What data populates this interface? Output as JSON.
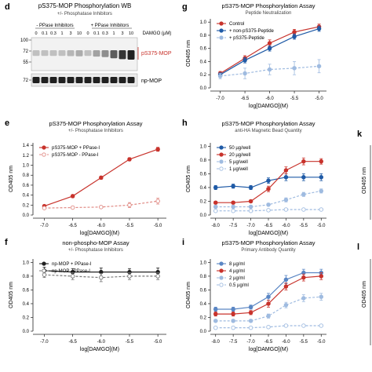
{
  "colors": {
    "red": "#c8332c",
    "light_red": "#e08a84",
    "blue": "#1f5aa6",
    "mid_blue": "#5a86c4",
    "light_blue": "#9fbbe0",
    "dark": "#222222",
    "gray": "#777777"
  },
  "western_blot": {
    "panel_letter": "d",
    "title": "pS375-MOP Phosphorylation WB",
    "subtitle": "+/- Phosphatase Inhibitors",
    "group_minus": "- PPase Inhibitors",
    "group_plus": "+ PPase Inhibitors",
    "damgo_label": "DAMGO (µM)",
    "conc_header": "0",
    "concentrations": [
      "0",
      "0.1",
      "0.3",
      "1",
      "3",
      "10",
      "0",
      "0.1",
      "0.3",
      "1",
      "3",
      "10"
    ],
    "mw_markers_top": [
      "100",
      "72",
      "55"
    ],
    "mw_markers_bottom": [
      "72"
    ],
    "band_top_label": "pS375-MOP",
    "band_bottom_label": "np-MOP",
    "band_top_intensity": [
      0.2,
      0.2,
      0.2,
      0.2,
      0.25,
      0.3,
      0.2,
      0.35,
      0.45,
      0.7,
      0.9,
      1.0
    ],
    "band_bottom_intensity": [
      0.9,
      0.9,
      0.9,
      0.9,
      0.9,
      0.9,
      0.9,
      0.9,
      0.9,
      0.9,
      0.9,
      0.9
    ]
  },
  "cut_panels": {
    "k_letter": "k",
    "l_letter": "l",
    "k_ylabel": "OD405 nm",
    "l_ylabel": "OD405 nm"
  },
  "chart_data": [
    {
      "id": "g",
      "type": "line",
      "panel_letter": "g",
      "title": "pS375-MOP Phosphorylation Assay",
      "subtitle": "Peptide Neutralization",
      "xlabel": "log[DAMGO](M)",
      "ylabel": "OD405 nm",
      "xlim": [
        -7.2,
        -4.85
      ],
      "ylim": [
        0,
        1.05
      ],
      "xticks": [
        "-7.0",
        "-6.5",
        "-6.0",
        "-5.5",
        "-5.0"
      ],
      "xtick_values": [
        -7.0,
        -6.5,
        -6.0,
        -5.5,
        -5.0
      ],
      "yticks": [
        "0.0",
        "0.2",
        "0.4",
        "0.6",
        "0.8",
        "1.0"
      ],
      "ytick_values": [
        0,
        0.2,
        0.4,
        0.6,
        0.8,
        1.0
      ],
      "legend": "top-left",
      "series": [
        {
          "name": "Control",
          "x": [
            -7.0,
            -6.5,
            -6.0,
            -5.5,
            -5.0
          ],
          "y": [
            0.22,
            0.45,
            0.68,
            0.85,
            0.93
          ],
          "err": [
            0.03,
            0.04,
            0.05,
            0.04,
            0.04
          ],
          "color": "#c8332c",
          "dash": false,
          "fill": "filled",
          "marker": "circle"
        },
        {
          "name": "+ non-pS375-Peptide",
          "x": [
            -7.0,
            -6.5,
            -6.0,
            -5.5,
            -5.0
          ],
          "y": [
            0.2,
            0.42,
            0.6,
            0.78,
            0.9
          ],
          "err": [
            0.03,
            0.04,
            0.04,
            0.04,
            0.04
          ],
          "color": "#1f5aa6",
          "dash": false,
          "fill": "filled",
          "marker": "circle"
        },
        {
          "name": "+ pS375-Peptide",
          "x": [
            -7.0,
            -6.5,
            -6.0,
            -5.5,
            -5.0
          ],
          "y": [
            0.18,
            0.22,
            0.28,
            0.3,
            0.33
          ],
          "err": [
            0.04,
            0.08,
            0.08,
            0.1,
            0.1
          ],
          "color": "#9fbbe0",
          "dash": true,
          "fill": "filled",
          "marker": "circle"
        }
      ]
    },
    {
      "id": "e",
      "type": "line",
      "panel_letter": "e",
      "title": "pS375-MOP Phosphorylation Assay",
      "subtitle": "+/- Phosphatase Inhibitors",
      "xlabel": "log[DAMGO](M)",
      "ylabel": "OD405 nm",
      "xlim": [
        -7.2,
        -4.85
      ],
      "ylim": [
        0,
        1.45
      ],
      "xticks": [
        "-7.0",
        "-6.5",
        "-6.0",
        "-5.5",
        "-5.0"
      ],
      "xtick_values": [
        -7.0,
        -6.5,
        -6.0,
        -5.5,
        -5.0
      ],
      "yticks": [
        "0.0",
        "0.2",
        "0.4",
        "0.6",
        "0.8",
        "1.0",
        "1.2",
        "1.4"
      ],
      "ytick_values": [
        0,
        0.2,
        0.4,
        0.6,
        0.8,
        1.0,
        1.2,
        1.4
      ],
      "legend": "top-left",
      "series": [
        {
          "name": "pS375-MOP + PPase-I",
          "x": [
            -7.0,
            -6.5,
            -6.0,
            -5.5,
            -5.0
          ],
          "y": [
            0.18,
            0.38,
            0.75,
            1.12,
            1.32
          ],
          "err": [
            0.02,
            0.03,
            0.03,
            0.03,
            0.04
          ],
          "color": "#c8332c",
          "dash": false,
          "fill": "filled",
          "marker": "circle"
        },
        {
          "name": "pS375-MOP - PPase-I",
          "x": [
            -7.0,
            -6.5,
            -6.0,
            -5.5,
            -5.0
          ],
          "y": [
            0.14,
            0.15,
            0.16,
            0.2,
            0.28
          ],
          "err": [
            0.02,
            0.02,
            0.02,
            0.05,
            0.06
          ],
          "color": "#e08a84",
          "dash": true,
          "fill": "open",
          "marker": "circle"
        }
      ]
    },
    {
      "id": "h",
      "type": "line",
      "panel_letter": "h",
      "title": "pS375-MOP Phosphorylation Assay",
      "subtitle": "anti-HA Magnetic Bead Quantity",
      "xlabel": "log[DAMGO](M)",
      "ylabel": "OD405 nm",
      "xlim": [
        -8.15,
        -4.85
      ],
      "ylim": [
        0,
        1.05
      ],
      "xticks": [
        "-8.0",
        "-7.5",
        "-7.0",
        "-6.5",
        "-6.0",
        "-5.5",
        "-5.0"
      ],
      "xtick_values": [
        -8.0,
        -7.5,
        -7.0,
        -6.5,
        -6.0,
        -5.5,
        -5.0
      ],
      "yticks": [
        "0.0",
        "0.2",
        "0.4",
        "0.6",
        "0.8",
        "1.0"
      ],
      "ytick_values": [
        0,
        0.2,
        0.4,
        0.6,
        0.8,
        1.0
      ],
      "legend": "top-left",
      "series": [
        {
          "name": "50 µg/well",
          "x": [
            -8.0,
            -7.5,
            -7.0,
            -6.5,
            -6.0,
            -5.5,
            -5.0
          ],
          "y": [
            0.4,
            0.42,
            0.4,
            0.5,
            0.55,
            0.55,
            0.55
          ],
          "err": [
            0.03,
            0.03,
            0.03,
            0.04,
            0.05,
            0.05,
            0.05
          ],
          "color": "#1f5aa6",
          "dash": false,
          "fill": "filled",
          "marker": "circle"
        },
        {
          "name": "20 µg/well",
          "x": [
            -8.0,
            -7.5,
            -7.0,
            -6.5,
            -6.0,
            -5.5,
            -5.0
          ],
          "y": [
            0.18,
            0.18,
            0.2,
            0.38,
            0.65,
            0.78,
            0.78
          ],
          "err": [
            0.02,
            0.02,
            0.02,
            0.04,
            0.05,
            0.05,
            0.04
          ],
          "color": "#c8332c",
          "dash": false,
          "fill": "filled",
          "marker": "circle"
        },
        {
          "name": "5 µg/well",
          "x": [
            -8.0,
            -7.5,
            -7.0,
            -6.5,
            -6.0,
            -5.5,
            -5.0
          ],
          "y": [
            0.12,
            0.12,
            0.12,
            0.15,
            0.22,
            0.3,
            0.35
          ],
          "err": [
            0.02,
            0.02,
            0.02,
            0.02,
            0.03,
            0.03,
            0.03
          ],
          "color": "#9fbbe0",
          "dash": true,
          "fill": "filled",
          "marker": "circle"
        },
        {
          "name": "1 µg/well",
          "x": [
            -8.0,
            -7.5,
            -7.0,
            -6.5,
            -6.0,
            -5.5,
            -5.0
          ],
          "y": [
            0.06,
            0.06,
            0.06,
            0.07,
            0.08,
            0.08,
            0.08
          ],
          "err": [
            0.01,
            0.01,
            0.01,
            0.01,
            0.01,
            0.01,
            0.01
          ],
          "color": "#9fbbe0",
          "dash": true,
          "fill": "open",
          "marker": "circle"
        }
      ]
    },
    {
      "id": "f",
      "type": "line",
      "panel_letter": "f",
      "title": "non-phospho-MOP Assay",
      "subtitle": "+/- Phosphatase Inhibitors",
      "xlabel": "log[DAMGO](M)",
      "ylabel": "OD405 nm",
      "xlim": [
        -7.2,
        -4.85
      ],
      "ylim": [
        0,
        1.05
      ],
      "xticks": [
        "-7.0",
        "-6.5",
        "-6.0",
        "-5.5",
        "-5.0"
      ],
      "xtick_values": [
        -7.0,
        -6.5,
        -6.0,
        -5.5,
        -5.0
      ],
      "yticks": [
        "0.0",
        "0.2",
        "0.4",
        "0.6",
        "0.8",
        "1.0"
      ],
      "ytick_values": [
        0,
        0.2,
        0.4,
        0.6,
        0.8,
        1.0
      ],
      "legend": "top-left",
      "series": [
        {
          "name": "np-MOP + PPase-I",
          "x": [
            -7.0,
            -6.5,
            -6.0,
            -5.5,
            -5.0
          ],
          "y": [
            0.88,
            0.86,
            0.86,
            0.86,
            0.86
          ],
          "err": [
            0.05,
            0.05,
            0.06,
            0.05,
            0.06
          ],
          "color": "#222222",
          "dash": false,
          "fill": "filled",
          "marker": "circle"
        },
        {
          "name": "np-MOP - PPase-I",
          "x": [
            -7.0,
            -6.5,
            -6.0,
            -5.5,
            -5.0
          ],
          "y": [
            0.82,
            0.8,
            0.78,
            0.8,
            0.8
          ],
          "err": [
            0.04,
            0.05,
            0.06,
            0.05,
            0.05
          ],
          "color": "#777777",
          "dash": true,
          "fill": "open",
          "marker": "circle"
        }
      ]
    },
    {
      "id": "i",
      "type": "line",
      "panel_letter": "i",
      "title": "pS375-MOP Phosphorylation Assay",
      "subtitle": "Primary Antibody Quantity",
      "xlabel": "log[DAMGO](M)",
      "ylabel": "OD405 nm",
      "xlim": [
        -8.15,
        -4.85
      ],
      "ylim": [
        0,
        1.05
      ],
      "xticks": [
        "-8.0",
        "-7.5",
        "-7.0",
        "-6.5",
        "-6.0",
        "-5.5",
        "-5.0"
      ],
      "xtick_values": [
        -8.0,
        -7.5,
        -7.0,
        -6.5,
        -6.0,
        -5.5,
        -5.0
      ],
      "yticks": [
        "0.0",
        "0.2",
        "0.4",
        "0.6",
        "0.8",
        "1.0"
      ],
      "ytick_values": [
        0,
        0.2,
        0.4,
        0.6,
        0.8,
        1.0
      ],
      "legend": "top-left",
      "series": [
        {
          "name": "8 µg/ml",
          "x": [
            -8.0,
            -7.5,
            -7.0,
            -6.5,
            -6.0,
            -5.5,
            -5.0
          ],
          "y": [
            0.32,
            0.32,
            0.35,
            0.5,
            0.75,
            0.85,
            0.85
          ],
          "err": [
            0.03,
            0.03,
            0.03,
            0.05,
            0.06,
            0.05,
            0.05
          ],
          "color": "#5a86c4",
          "dash": false,
          "fill": "filled",
          "marker": "circle"
        },
        {
          "name": "4 µg/ml",
          "x": [
            -8.0,
            -7.5,
            -7.0,
            -6.5,
            -6.0,
            -5.5,
            -5.0
          ],
          "y": [
            0.25,
            0.25,
            0.27,
            0.4,
            0.65,
            0.78,
            0.8
          ],
          "err": [
            0.03,
            0.03,
            0.03,
            0.05,
            0.05,
            0.05,
            0.05
          ],
          "color": "#c8332c",
          "dash": false,
          "fill": "filled",
          "marker": "circle"
        },
        {
          "name": "2 µg/ml",
          "x": [
            -8.0,
            -7.5,
            -7.0,
            -6.5,
            -6.0,
            -5.5,
            -5.0
          ],
          "y": [
            0.15,
            0.15,
            0.15,
            0.22,
            0.38,
            0.48,
            0.5
          ],
          "err": [
            0.02,
            0.02,
            0.02,
            0.03,
            0.04,
            0.05,
            0.05
          ],
          "color": "#9fbbe0",
          "dash": true,
          "fill": "filled",
          "marker": "circle"
        },
        {
          "name": "0.5 µg/ml",
          "x": [
            -8.0,
            -7.5,
            -7.0,
            -6.5,
            -6.0,
            -5.5,
            -5.0
          ],
          "y": [
            0.05,
            0.05,
            0.05,
            0.06,
            0.08,
            0.08,
            0.08
          ],
          "err": [
            0.01,
            0.01,
            0.01,
            0.01,
            0.01,
            0.01,
            0.01
          ],
          "color": "#9fbbe0",
          "dash": true,
          "fill": "open",
          "marker": "circle"
        }
      ]
    }
  ]
}
